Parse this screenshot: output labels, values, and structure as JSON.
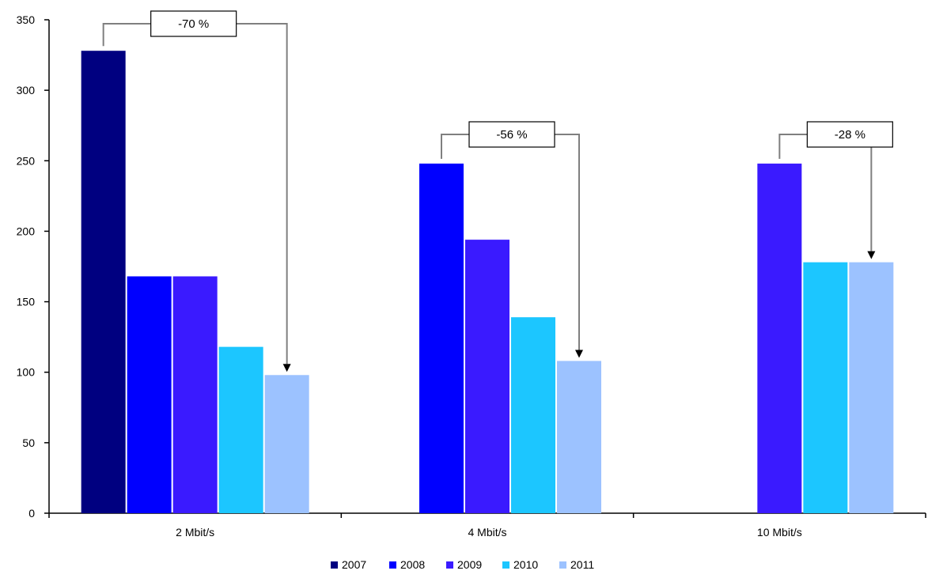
{
  "chart_data": {
    "type": "bar",
    "title": "",
    "xlabel": "",
    "ylabel": "",
    "ylim": [
      0,
      350
    ],
    "yticks": [
      0,
      50,
      100,
      150,
      200,
      250,
      300,
      350
    ],
    "grid": false,
    "legend": "bottom",
    "categories": [
      "2 Mbit/s",
      "4 Mbit/s",
      "10 Mbit/s"
    ],
    "series": [
      {
        "name": "2007",
        "color": "#000080",
        "values": [
          328,
          null,
          null
        ]
      },
      {
        "name": "2008",
        "color": "#0000FF",
        "values": [
          168,
          248,
          null
        ]
      },
      {
        "name": "2009",
        "color": "#3A1AFF",
        "values": [
          168,
          194,
          248
        ]
      },
      {
        "name": "2010",
        "color": "#1CC6FF",
        "values": [
          118,
          139,
          178
        ]
      },
      {
        "name": "2011",
        "color": "#9CC2FF",
        "values": [
          98,
          108,
          178
        ]
      }
    ],
    "annotations": [
      {
        "category": "2 Mbit/s",
        "text": "-70 %",
        "from_series": "2007",
        "to_series": "2011"
      },
      {
        "category": "4 Mbit/s",
        "text": "-56 %",
        "from_series": "2008",
        "to_series": "2011"
      },
      {
        "category": "10 Mbit/s",
        "text": "-28 %",
        "from_series": "2009",
        "to_series": "2011"
      }
    ]
  }
}
